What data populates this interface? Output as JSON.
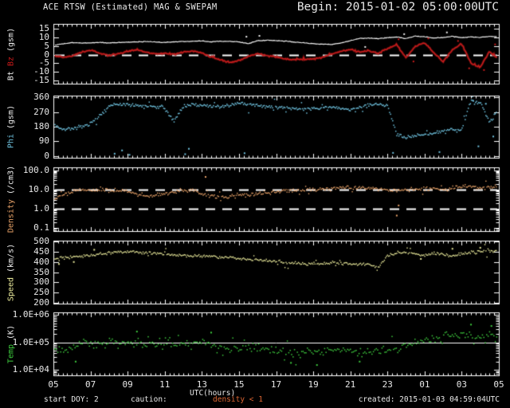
{
  "header": {
    "title": "ACE RTSW (Estimated) MAG & SWEPAM",
    "begin": "Begin: 2015-01-02 05:00:00UTC"
  },
  "footer": {
    "start_doy_label": "start DOY:",
    "start_doy_value": "2",
    "caution_label": "caution:",
    "caution_value": "density < 1",
    "caution_color": "#dd6633",
    "created": "created: 2015-01-03 04:59:04UTC"
  },
  "chart_data": {
    "type": "scatter",
    "title": "ACE RTSW (Estimated) MAG & SWEPAM",
    "x": {
      "label": "UTC(hours)",
      "start_hour": 5,
      "end_hour": 29,
      "major_tick_every": 2,
      "minor_tick_every": 0.25,
      "tick_labels": [
        "05",
        "07",
        "09",
        "11",
        "13",
        "15",
        "17",
        "19",
        "21",
        "23",
        "01",
        "03",
        "05"
      ]
    },
    "sample": {
      "x_start": 5,
      "x_step": 0.5
    },
    "panels": [
      {
        "name": "mag",
        "label_parts": [
          {
            "text": "Bt",
            "color": "#f0f0f0"
          },
          {
            "text": "Bz",
            "color": "#cc1a1a"
          },
          {
            "text": "(gsm)",
            "color": "#f0f0f0"
          }
        ],
        "scale": "linear",
        "ylim": [
          -17,
          18
        ],
        "ytick_values": [
          15,
          10,
          5,
          0,
          -5,
          -10,
          -15
        ],
        "ytick_labels": [
          "15",
          "10",
          "5",
          "0",
          "-5",
          "-10",
          "-15"
        ],
        "ref_lines": [
          {
            "value": 0,
            "style": "dashed"
          }
        ],
        "series": [
          {
            "name": "Bt",
            "color": "#f2f2f2",
            "style": "line",
            "width": 1.2,
            "sigma": 0.18,
            "big_p": 0.02,
            "big_mult": 3,
            "y": [
              5.5,
              6.3,
              7.0,
              6.8,
              6.9,
              7.2,
              6.8,
              7.1,
              7.3,
              7.5,
              7.7,
              7.4,
              7.2,
              7.5,
              7.7,
              7.9,
              8.1,
              7.5,
              7.9,
              7.8,
              7.5,
              6.4,
              8.1,
              8.4,
              8.2,
              7.9,
              7.4,
              6.9,
              6.5,
              6.1,
              6.0,
              6.8,
              8.2,
              9.4,
              9.7,
              9.4,
              9.9,
              10.4,
              9.4,
              10.9,
              10.4,
              9.7,
              10.1,
              10.7,
              9.9,
              10.4,
              10.1,
              10.7,
              10.4
            ],
            "outliers": [
              [
                15.4,
                10.5
              ],
              [
                16.1,
                11
              ],
              [
                21.8,
                4.5
              ],
              [
                23.9,
                12
              ],
              [
                26.2,
                13
              ]
            ]
          },
          {
            "name": "Bz",
            "color": "#cc1c1c",
            "halo": "#6e1010",
            "style": "line",
            "width": 1.5,
            "sigma": 0.45,
            "big_p": 0.06,
            "big_mult": 2.5,
            "y": [
              -0.5,
              -1.5,
              -0.8,
              1.5,
              2.5,
              1.0,
              -0.5,
              0.5,
              2.0,
              2.8,
              1.5,
              0.5,
              0.8,
              0.2,
              1.5,
              2.2,
              1.0,
              -1.5,
              -3.0,
              -4.5,
              -3.5,
              -1.0,
              0.5,
              -0.5,
              -1.5,
              -2.5,
              -3.0,
              -2.8,
              -2.5,
              -1.5,
              0.5,
              2.0,
              3.0,
              1.5,
              2.5,
              0.5,
              3.5,
              6.0,
              -2.0,
              5.0,
              7.0,
              1.0,
              -4.0,
              3.0,
              6.5,
              -5.0,
              -7.5,
              2.0,
              -3.0
            ],
            "outliers": [
              [
                23.6,
                9
              ],
              [
                24.4,
                -4
              ],
              [
                25.2,
                9.5
              ],
              [
                26.8,
                8
              ],
              [
                27.4,
                -8
              ],
              [
                28.2,
                -9
              ],
              [
                28.8,
                6
              ]
            ]
          }
        ]
      },
      {
        "name": "phi",
        "label_parts": [
          {
            "text": "Phi",
            "color": "#6fc3e0"
          },
          {
            "text": "(gsm)",
            "color": "#f0f0f0"
          }
        ],
        "scale": "linear",
        "ylim": [
          -10,
          370
        ],
        "ytick_values": [
          360,
          270,
          180,
          90,
          0
        ],
        "ytick_labels": [
          "360",
          "270",
          "180",
          "90",
          "0"
        ],
        "ref_lines": [],
        "series": [
          {
            "name": "Phi",
            "color": "#6fc3e0",
            "style": "dots",
            "dot": 1.5,
            "step": 1.3,
            "sigma": 5,
            "big_p": 0.05,
            "big_mult": 6,
            "y": [
              200,
              162,
              168,
              178,
              198,
              245,
              308,
              318,
              314,
              310,
              306,
              300,
              296,
              210,
              308,
              314,
              310,
              304,
              300,
              310,
              328,
              318,
              310,
              305,
              300,
              295,
              290,
              286,
              290,
              295,
              300,
              290,
              286,
              300,
              310,
              318,
              310,
              135,
              112,
              122,
              132,
              142,
              152,
              162,
              156,
              338,
              328,
              205,
              285
            ],
            "outliers": [
              [
                8.3,
                15
              ],
              [
                8.7,
                35
              ],
              [
                9.1,
                8
              ],
              [
                12.1,
                12
              ],
              [
                12.3,
                45
              ],
              [
                15.3,
                18
              ],
              [
                23.3,
                20
              ],
              [
                25.8,
                25
              ],
              [
                27.6,
                340
              ],
              [
                27.9,
                60
              ],
              [
                28.3,
                320
              ],
              [
                28.7,
                120
              ]
            ]
          }
        ]
      },
      {
        "name": "density",
        "label_parts": [
          {
            "text": "Density",
            "color": "#e8a268"
          },
          {
            "text": "(/cm3)",
            "color": "#f0f0f0"
          }
        ],
        "scale": "log",
        "ylim_log": [
          -1.15,
          2.15
        ],
        "ytick_values": [
          100,
          10,
          1,
          0.1
        ],
        "ytick_labels": [
          "100.0",
          "10.0",
          "1.0",
          "0.1"
        ],
        "ref_lines": [
          {
            "value": 10,
            "style": "dashed"
          },
          {
            "value": 1,
            "style": "dashed"
          }
        ],
        "series": [
          {
            "name": "Density",
            "color": "#e8a268",
            "style": "dots",
            "dot": 1.4,
            "step": 1.3,
            "sigma": 0.05,
            "big_p": 0.05,
            "big_mult": 3,
            "y": [
              3.5,
              5.0,
              8.0,
              9.5,
              9.0,
              9.5,
              8.5,
              9.0,
              8.0,
              5.5,
              4.5,
              5.0,
              6.5,
              7.5,
              9.0,
              9.5,
              5.5,
              4.5,
              4.0,
              4.5,
              5.0,
              5.5,
              6.0,
              6.5,
              7.0,
              8.0,
              9.0,
              9.5,
              10.0,
              10.5,
              11.0,
              12.5,
              14.0,
              12.0,
              11.0,
              10.5,
              10.0,
              9.0,
              9.5,
              10.0,
              10.5,
              11.5,
              10.0,
              12.0,
              13.5,
              15.0,
              12.0,
              13.0,
              14.0
            ],
            "outliers": [
              [
                13.2,
                45
              ],
              [
                23.5,
                0.45
              ],
              [
                23.6,
                1.5
              ]
            ]
          }
        ]
      },
      {
        "name": "speed",
        "label_parts": [
          {
            "text": "Speed",
            "color": "#ecec9c"
          },
          {
            "text": "(km/s)",
            "color": "#f0f0f0"
          }
        ],
        "scale": "linear",
        "ylim": [
          195,
          505
        ],
        "ytick_values": [
          500,
          450,
          400,
          350,
          300,
          250,
          200
        ],
        "ytick_labels": [
          "500",
          "450",
          "400",
          "350",
          "300",
          "250",
          "200"
        ],
        "ref_lines": [],
        "series": [
          {
            "name": "Speed",
            "color": "#ecec9c",
            "style": "dots",
            "dot": 1.4,
            "step": 1.3,
            "sigma": 3.5,
            "big_p": 0.07,
            "big_mult": 4,
            "y": [
              412,
              418,
              424,
              428,
              434,
              440,
              446,
              450,
              452,
              449,
              446,
              442,
              438,
              435,
              433,
              431,
              429,
              427,
              425,
              421,
              417,
              413,
              409,
              405,
              401,
              398,
              395,
              393,
              392,
              393,
              395,
              392,
              390,
              389,
              388,
              372,
              430,
              445,
              450,
              438,
              430,
              442,
              435,
              428,
              440,
              448,
              452,
              455,
              450
            ],
            "outliers": [
              [
                5.3,
                390
              ],
              [
                6.1,
                400
              ],
              [
                7.2,
                460
              ],
              [
                24.8,
                415
              ],
              [
                26.5,
                465
              ],
              [
                28.0,
                470
              ]
            ]
          }
        ]
      },
      {
        "name": "temp",
        "label_parts": [
          {
            "text": "Temp",
            "color": "#3ecc3e"
          },
          {
            "text": "(K)",
            "color": "#f0f0f0"
          }
        ],
        "scale": "log",
        "ylim_log": [
          3.8,
          6.1
        ],
        "ytick_values": [
          1000000,
          100000,
          10000
        ],
        "ytick_labels": [
          "1.0E+06",
          "1.0E+05",
          "1.0E+04"
        ],
        "ref_lines": [
          {
            "value": 100000,
            "style": "solid"
          }
        ],
        "series": [
          {
            "name": "Temp",
            "color": "#3ecc3e",
            "style": "dots",
            "dot": 1.5,
            "step": 1.8,
            "sigma": 0.07,
            "big_p": 0.12,
            "big_mult": 3,
            "y": [
              60000,
              50000,
              70000,
              85000,
              90000,
              100000,
              105000,
              100000,
              95000,
              90000,
              95000,
              85000,
              80000,
              85000,
              90000,
              100000,
              105000,
              90000,
              65000,
              55000,
              60000,
              65000,
              60000,
              55000,
              50000,
              45000,
              40000,
              45000,
              50000,
              45000,
              55000,
              60000,
              50000,
              45000,
              40000,
              45000,
              55000,
              60000,
              70000,
              90000,
              120000,
              150000,
              180000,
              160000,
              200000,
              170000,
              150000,
              180000,
              200000
            ],
            "outliers": [
              [
                6.2,
                20000
              ],
              [
                9.5,
                250000
              ],
              [
                13.5,
                230000
              ],
              [
                17.8,
                18000
              ],
              [
                19.2,
                15000
              ],
              [
                21.5,
                20000
              ],
              [
                27.5,
                450000
              ],
              [
                28.6,
                400000
              ]
            ]
          }
        ]
      }
    ]
  }
}
